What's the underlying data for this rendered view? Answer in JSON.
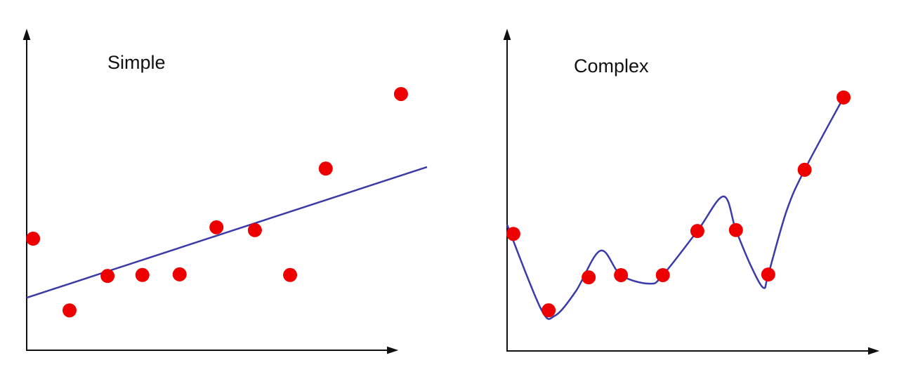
{
  "chart_data": [
    {
      "type": "scatter",
      "title": "Simple",
      "xlim": [
        0,
        100
      ],
      "ylim": [
        0,
        100
      ],
      "points": {
        "color": "#ee0000",
        "x": [
          1.6,
          10.7,
          20.2,
          28.9,
          38.2,
          47.4,
          57,
          65.8,
          74.7,
          93.5
        ],
        "values": [
          35.1,
          12.4,
          23.3,
          23.6,
          23.8,
          38.7,
          37.8,
          23.6,
          57.3,
          80.9
        ]
      },
      "curve": {
        "color": "#3b3ba8",
        "smooth": false,
        "x": [
          0,
          100
        ],
        "values": [
          16.4,
          57.8
        ]
      }
    },
    {
      "type": "scatter",
      "title": "Complex",
      "xlim": [
        0,
        100
      ],
      "ylim": [
        0,
        100
      ],
      "points": {
        "color": "#ee0000",
        "x": [
          1.7,
          11.3,
          22.2,
          31,
          42.4,
          51.8,
          62.3,
          71.1,
          81,
          91.6
        ],
        "values": [
          36.9,
          12.8,
          23.2,
          23.9,
          23.9,
          37.8,
          38.1,
          24.1,
          57.1,
          79.9
        ]
      },
      "curve": {
        "color": "#3b3ba8",
        "smooth": true,
        "x": [
          0,
          9.2,
          13,
          18.7,
          25.4,
          31,
          38.8,
          42.4,
          51.8,
          58.9,
          62.3,
          66.5,
          69.8,
          71.1,
          76.1,
          81,
          91.6
        ],
        "values": [
          39.8,
          13.3,
          11.1,
          18.8,
          31.6,
          23.9,
          21.2,
          23.9,
          37.8,
          48.7,
          38.1,
          26.5,
          19.9,
          24.1,
          44.2,
          57.1,
          79.9
        ]
      }
    }
  ]
}
